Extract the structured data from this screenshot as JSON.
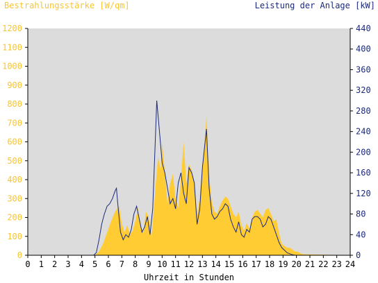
{
  "chart_data": {
    "type": "area+line",
    "left_axis": {
      "label": "Bestrahlungsstärke [W/qm]",
      "range": [
        0,
        1200
      ],
      "ticks": [
        "0",
        "100",
        "200",
        "300",
        "400",
        "500",
        "600",
        "700",
        "800",
        "900",
        "1000",
        "1100",
        "1200"
      ],
      "color": "#f7c533"
    },
    "right_axis": {
      "label": "Leistung der Anlage [kW]",
      "range": [
        0,
        440
      ],
      "ticks": [
        "0",
        "40",
        "80",
        "120",
        "160",
        "200",
        "240",
        "280",
        "320",
        "360",
        "400",
        "440"
      ],
      "color": "#1b2a7a"
    },
    "x_axis": {
      "label": "Uhrzeit in Stunden",
      "range": [
        0,
        24
      ],
      "ticks": [
        "0",
        "1",
        "2",
        "3",
        "4",
        "5",
        "6",
        "7",
        "8",
        "9",
        "10",
        "11",
        "12",
        "13",
        "14",
        "15",
        "16",
        "17",
        "18",
        "19",
        "20",
        "21",
        "22",
        "23",
        "24"
      ]
    },
    "background": "#dcdcdc",
    "series": [
      {
        "name": "Bestrahlungsstärke",
        "style": "area",
        "axis": "left",
        "color": "#ffcc33",
        "x": [
          0,
          5.0,
          5.3,
          5.6,
          5.9,
          6.2,
          6.5,
          6.8,
          7.0,
          7.2,
          7.4,
          7.6,
          7.8,
          8.0,
          8.2,
          8.4,
          8.6,
          8.8,
          9.0,
          9.2,
          9.3,
          9.5,
          9.7,
          9.9,
          10.0,
          10.2,
          10.4,
          10.6,
          10.8,
          11.0,
          11.2,
          11.4,
          11.6,
          11.8,
          12.0,
          12.2,
          12.4,
          12.6,
          12.8,
          13.0,
          13.2,
          13.3,
          13.5,
          13.7,
          13.9,
          14.1,
          14.3,
          14.5,
          14.7,
          14.9,
          15.1,
          15.3,
          15.5,
          15.7,
          15.9,
          16.1,
          16.3,
          16.5,
          16.7,
          16.9,
          17.1,
          17.3,
          17.5,
          17.7,
          17.9,
          18.1,
          18.3,
          18.5,
          18.7,
          18.9,
          19.1,
          19.3,
          19.5,
          19.7,
          19.9,
          20.1,
          20.3,
          20.5,
          24
        ],
        "y": [
          0,
          0,
          20,
          60,
          120,
          180,
          230,
          260,
          170,
          120,
          160,
          110,
          130,
          180,
          250,
          150,
          120,
          230,
          200,
          100,
          170,
          360,
          520,
          450,
          600,
          440,
          270,
          380,
          430,
          300,
          250,
          400,
          600,
          380,
          480,
          450,
          370,
          220,
          300,
          470,
          620,
          740,
          420,
          280,
          230,
          220,
          260,
          290,
          310,
          300,
          260,
          220,
          200,
          230,
          160,
          130,
          170,
          140,
          200,
          230,
          240,
          220,
          200,
          240,
          250,
          220,
          180,
          190,
          120,
          60,
          50,
          40,
          40,
          30,
          20,
          20,
          10,
          5,
          0
        ]
      },
      {
        "name": "Leistung der Anlage",
        "style": "line",
        "axis": "right",
        "color": "#1b2a7a",
        "x": [
          0,
          4.9,
          5.1,
          5.3,
          5.5,
          5.7,
          5.9,
          6.1,
          6.3,
          6.5,
          6.6,
          6.7,
          6.9,
          7.1,
          7.3,
          7.5,
          7.7,
          7.9,
          8.1,
          8.3,
          8.5,
          8.7,
          8.9,
          9.1,
          9.3,
          9.5,
          9.6,
          9.8,
          10.0,
          10.2,
          10.4,
          10.6,
          10.8,
          11.0,
          11.2,
          11.4,
          11.6,
          11.8,
          12.0,
          12.2,
          12.4,
          12.6,
          12.8,
          13.0,
          13.2,
          13.3,
          13.5,
          13.7,
          13.9,
          14.1,
          14.3,
          14.5,
          14.7,
          14.9,
          15.1,
          15.3,
          15.5,
          15.7,
          15.9,
          16.1,
          16.3,
          16.5,
          16.7,
          16.9,
          17.1,
          17.3,
          17.5,
          17.7,
          17.9,
          18.1,
          18.3,
          18.5,
          18.7,
          18.9,
          19.1,
          19.3,
          19.5,
          19.7,
          19.9,
          24
        ],
        "y": [
          0,
          0,
          5,
          30,
          60,
          80,
          95,
          100,
          110,
          125,
          130,
          100,
          45,
          30,
          40,
          35,
          50,
          80,
          95,
          70,
          45,
          55,
          75,
          40,
          90,
          230,
          300,
          240,
          180,
          160,
          130,
          100,
          110,
          90,
          140,
          160,
          120,
          100,
          170,
          160,
          140,
          60,
          90,
          170,
          220,
          245,
          130,
          80,
          70,
          75,
          85,
          90,
          100,
          95,
          70,
          55,
          45,
          65,
          40,
          35,
          50,
          45,
          70,
          75,
          75,
          70,
          55,
          60,
          75,
          70,
          55,
          40,
          25,
          15,
          10,
          5,
          3,
          1,
          0,
          0
        ]
      }
    ]
  }
}
